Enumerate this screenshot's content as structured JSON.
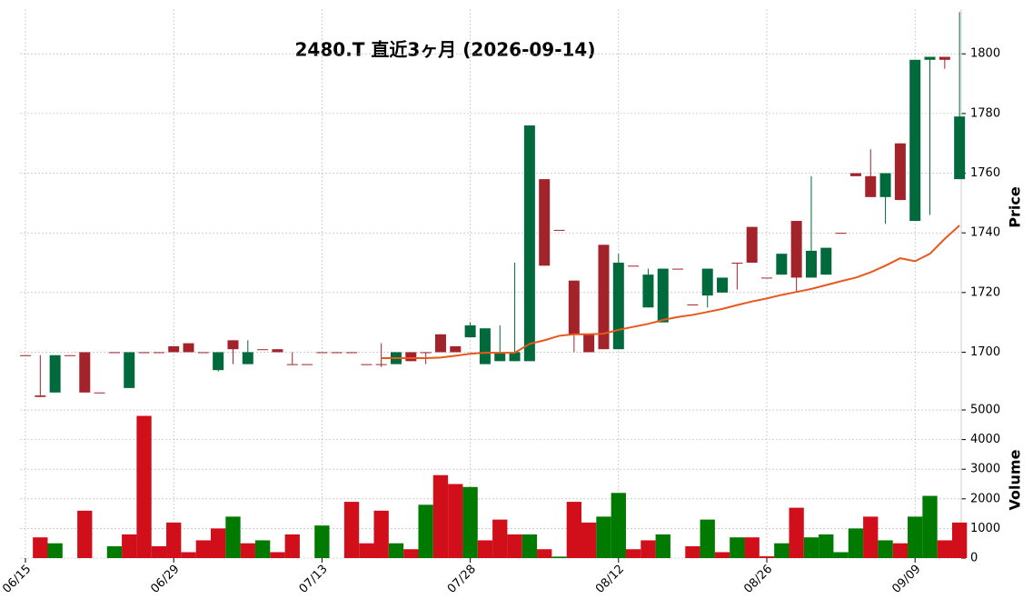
{
  "chart_data": [
    {
      "type": "candlestick",
      "title": "2480.T  直近3ヶ月  (2026-09-14)",
      "y_label": "Price",
      "open": [
        1699,
        1685.5,
        1686.5,
        1699,
        1700,
        1686.5,
        1700,
        1688,
        1700,
        1700,
        1702,
        1703,
        1700,
        1694,
        1704,
        1696,
        1701,
        1701,
        1696,
        1696,
        1700,
        1700,
        1700,
        1696,
        1696,
        1696,
        1700,
        1700,
        1706,
        1702,
        1705,
        1696,
        1697,
        1697,
        1697,
        1758,
        1741,
        1724,
        1706,
        1736,
        1701,
        1729,
        1715,
        1710,
        1728,
        1716,
        1719,
        1720,
        1730,
        1742,
        1725,
        1726,
        1744,
        1725,
        1726,
        1740,
        1760,
        1759,
        1752,
        1770,
        1744,
        1798,
        1799,
        1758
      ],
      "high": [
        1699,
        1699,
        1699,
        1699,
        1700,
        1686.5,
        1700,
        1700,
        1700,
        1700,
        1702,
        1703,
        1700,
        1700,
        1704,
        1704,
        1701,
        1701,
        1700,
        1696,
        1700,
        1700,
        1700,
        1696,
        1703,
        1700,
        1700,
        1700,
        1706,
        1702,
        1710,
        1708,
        1709,
        1730,
        1776,
        1758,
        1741,
        1724,
        1706,
        1736,
        1733,
        1729,
        1728,
        1728,
        1728,
        1716,
        1728,
        1725,
        1730,
        1742,
        1725,
        1733,
        1744,
        1759,
        1735,
        1740,
        1760,
        1768,
        1760,
        1770,
        1798,
        1799,
        1799,
        1814
      ],
      "low": [
        1699,
        1685,
        1686.5,
        1699,
        1686.5,
        1686.5,
        1700,
        1688,
        1700,
        1700,
        1700,
        1700,
        1700,
        1693.5,
        1696,
        1696,
        1701,
        1700,
        1696,
        1696,
        1700,
        1700,
        1700,
        1696,
        1695,
        1696,
        1697,
        1696,
        1700,
        1700,
        1705,
        1696,
        1697,
        1697,
        1697,
        1729,
        1741,
        1700,
        1700,
        1701,
        1701,
        1729,
        1715,
        1710,
        1728,
        1716,
        1715,
        1720,
        1721,
        1730,
        1725,
        1726,
        1720,
        1725,
        1726,
        1740,
        1759,
        1752,
        1743,
        1751,
        1744,
        1746,
        1795,
        1758
      ],
      "close": [
        1699,
        1685,
        1699,
        1699,
        1686.5,
        1686.5,
        1700,
        1700,
        1700,
        1700,
        1700,
        1700,
        1700,
        1700,
        1701,
        1700,
        1701,
        1700,
        1696,
        1696,
        1700,
        1700,
        1700,
        1696,
        1696,
        1700,
        1697,
        1700,
        1700,
        1700,
        1709,
        1708,
        1700,
        1700,
        1776,
        1729,
        1741,
        1706,
        1700,
        1701,
        1730,
        1729,
        1726,
        1728,
        1728,
        1716,
        1728,
        1725,
        1730,
        1730,
        1725,
        1733,
        1725,
        1734,
        1735,
        1740,
        1759,
        1752,
        1760,
        1751,
        1798,
        1799,
        1798,
        1779
      ],
      "up_color": "#006a3c",
      "down_color": "#a3232b",
      "ma": {
        "color": "#e8581c",
        "values": [
          null,
          null,
          null,
          null,
          null,
          null,
          null,
          null,
          null,
          null,
          null,
          null,
          null,
          null,
          null,
          null,
          null,
          null,
          null,
          null,
          null,
          null,
          null,
          null,
          1698,
          1698,
          1698,
          1698,
          1698.2,
          1698.8,
          1699.5,
          1699.8,
          1699.8,
          1699.8,
          1702.8,
          1704,
          1705.5,
          1706,
          1706,
          1706.2,
          1707.5,
          1708.5,
          1709.5,
          1710.8,
          1711.8,
          1712.5,
          1713.5,
          1714.5,
          1715.8,
          1717,
          1718,
          1719.2,
          1720.2,
          1721.2,
          1722.5,
          1723.8,
          1725,
          1726.8,
          1729,
          1731.5,
          1730.5,
          1733,
          1738,
          1742.5
        ]
      },
      "ylim": [
        1684,
        1815
      ],
      "yticks": [
        1700,
        1720,
        1740,
        1760,
        1780,
        1800
      ],
      "grid": true
    },
    {
      "type": "bar",
      "y_label": "Volume",
      "categories": [
        "06/15",
        null,
        null,
        null,
        null,
        null,
        null,
        null,
        null,
        null,
        "06/29",
        null,
        null,
        null,
        null,
        null,
        null,
        null,
        null,
        null,
        "07/13",
        null,
        null,
        null,
        null,
        null,
        null,
        null,
        null,
        null,
        "07/28",
        null,
        null,
        null,
        null,
        null,
        null,
        null,
        null,
        null,
        "08/12",
        null,
        null,
        null,
        null,
        null,
        null,
        null,
        null,
        null,
        "08/26",
        null,
        null,
        null,
        null,
        null,
        null,
        null,
        null,
        null,
        "09/09",
        null,
        null,
        null
      ],
      "values": [
        0,
        700,
        500,
        0,
        1600,
        0,
        400,
        800,
        4800,
        400,
        1200,
        200,
        600,
        1000,
        1400,
        500,
        600,
        200,
        800,
        0,
        1100,
        0,
        1900,
        500,
        1600,
        500,
        300,
        1800,
        2800,
        2500,
        2400,
        600,
        1300,
        800,
        800,
        300,
        50,
        1900,
        1200,
        1400,
        2200,
        300,
        600,
        800,
        0,
        400,
        1300,
        200,
        700,
        700,
        60,
        500,
        1700,
        700,
        800,
        200,
        1000,
        1400,
        600,
        500,
        1400,
        2100,
        600,
        1200
      ],
      "up_color": "#007a00",
      "down_color": "#d10f1b",
      "ylim": [
        0,
        5200
      ],
      "yticks": [
        0,
        1000,
        2000,
        3000,
        4000,
        5000
      ],
      "grid": true
    }
  ]
}
